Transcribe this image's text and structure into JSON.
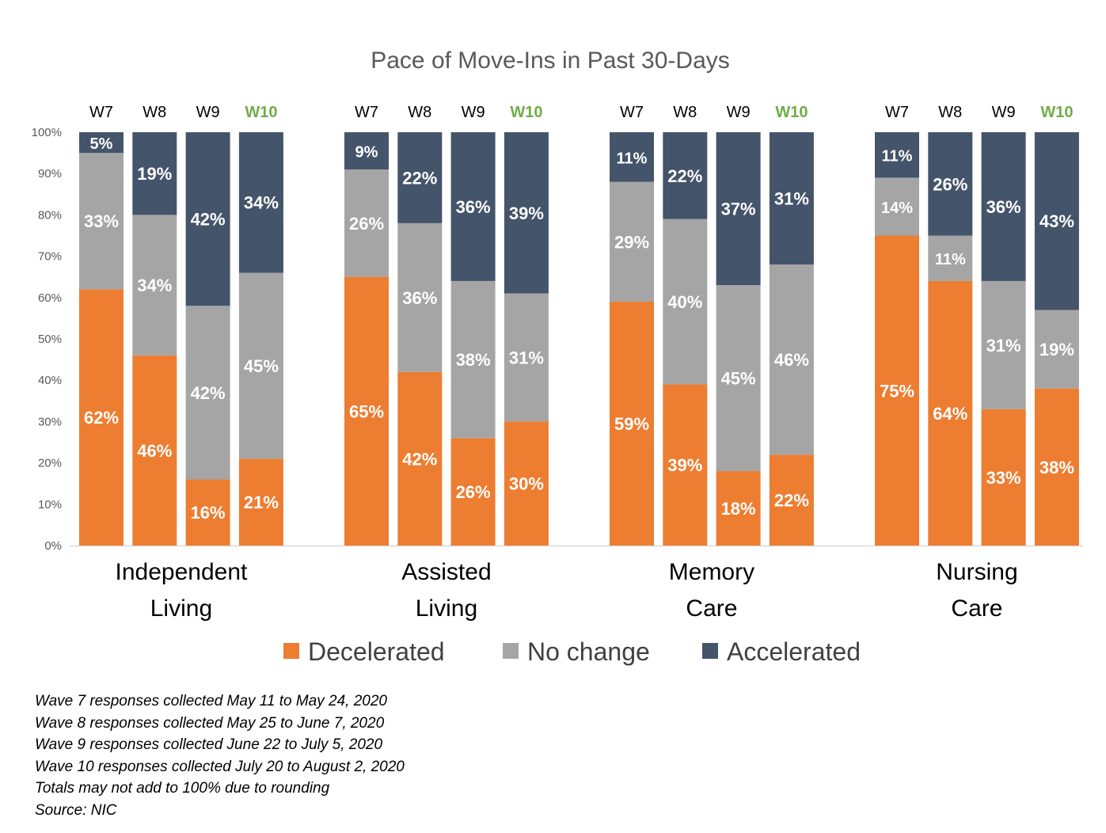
{
  "chart_data": {
    "type": "bar",
    "stacked": true,
    "percent_stacked": true,
    "title": "Pace of Move-Ins in Past 30-Days",
    "ylim": [
      0,
      100
    ],
    "y_ticks": [
      "0%",
      "10%",
      "20%",
      "30%",
      "40%",
      "50%",
      "60%",
      "70%",
      "80%",
      "90%",
      "100%"
    ],
    "waves": [
      "W7",
      "W8",
      "W9",
      "W10"
    ],
    "highlight_wave": "W10",
    "groups": [
      {
        "label_lines": [
          "Independent",
          "Living"
        ],
        "bars": [
          {
            "wave": "W7",
            "decelerated": 62,
            "no_change": 33,
            "accelerated": 5
          },
          {
            "wave": "W8",
            "decelerated": 46,
            "no_change": 34,
            "accelerated": 19
          },
          {
            "wave": "W9",
            "decelerated": 16,
            "no_change": 42,
            "accelerated": 42
          },
          {
            "wave": "W10",
            "decelerated": 21,
            "no_change": 45,
            "accelerated": 34
          }
        ]
      },
      {
        "label_lines": [
          "Assisted",
          "Living"
        ],
        "bars": [
          {
            "wave": "W7",
            "decelerated": 65,
            "no_change": 26,
            "accelerated": 9
          },
          {
            "wave": "W8",
            "decelerated": 42,
            "no_change": 36,
            "accelerated": 22
          },
          {
            "wave": "W9",
            "decelerated": 26,
            "no_change": 38,
            "accelerated": 36
          },
          {
            "wave": "W10",
            "decelerated": 30,
            "no_change": 31,
            "accelerated": 39
          }
        ]
      },
      {
        "label_lines": [
          "Memory",
          "Care"
        ],
        "bars": [
          {
            "wave": "W7",
            "decelerated": 59,
            "no_change": 29,
            "accelerated": 11
          },
          {
            "wave": "W8",
            "decelerated": 39,
            "no_change": 40,
            "accelerated": 22
          },
          {
            "wave": "W9",
            "decelerated": 18,
            "no_change": 45,
            "accelerated": 37
          },
          {
            "wave": "W10",
            "decelerated": 22,
            "no_change": 46,
            "accelerated": 31
          }
        ]
      },
      {
        "label_lines": [
          "Nursing",
          "Care"
        ],
        "bars": [
          {
            "wave": "W7",
            "decelerated": 75,
            "no_change": 14,
            "accelerated": 11
          },
          {
            "wave": "W8",
            "decelerated": 64,
            "no_change": 11,
            "accelerated": 26
          },
          {
            "wave": "W9",
            "decelerated": 33,
            "no_change": 31,
            "accelerated": 36
          },
          {
            "wave": "W10",
            "decelerated": 38,
            "no_change": 19,
            "accelerated": 43
          }
        ]
      }
    ],
    "series": [
      {
        "key": "decelerated",
        "name": "Decelerated",
        "color": "#ed7d31"
      },
      {
        "key": "no_change",
        "name": "No change",
        "color": "#a5a5a5"
      },
      {
        "key": "accelerated",
        "name": "Accelerated",
        "color": "#44546a"
      }
    ],
    "legend_position": "bottom",
    "grid": false
  },
  "notes": [
    "Wave 7 responses collected May 11 to May 24, 2020",
    "Wave 8 responses collected May 25 to June 7, 2020",
    "Wave 9 responses collected June 22 to July 5, 2020",
    "Wave 10 responses collected July 20 to August 2, 2020",
    "Totals may not add to 100% due to rounding",
    "Source: NIC"
  ]
}
